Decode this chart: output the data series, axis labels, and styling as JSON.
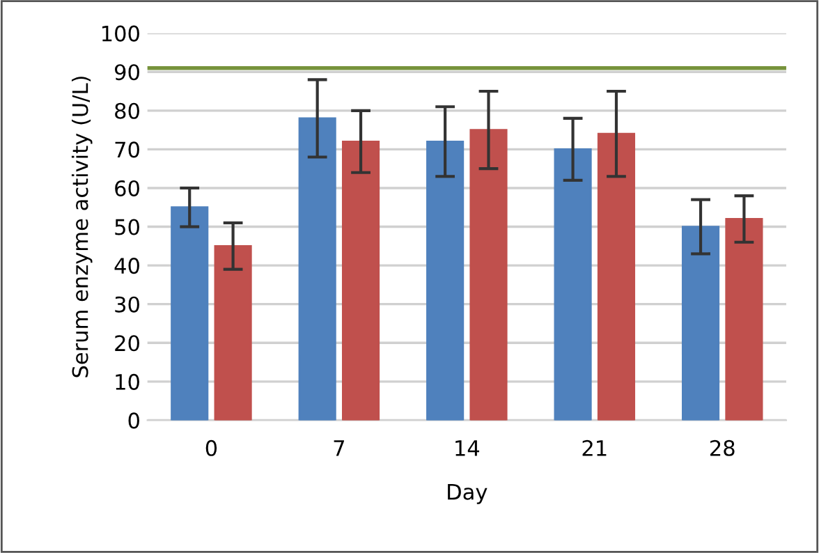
{
  "chart_data": {
    "type": "bar",
    "xlabel": "Day",
    "ylabel": "Serum enzyme activity (U/L)",
    "categories": [
      "0",
      "7",
      "14",
      "21",
      "28"
    ],
    "series": [
      {
        "color": "#4f81bd",
        "values": [
          55,
          78,
          72,
          70,
          50
        ],
        "errors": [
          [
            50,
            60
          ],
          [
            68,
            88
          ],
          [
            63,
            81
          ],
          [
            62,
            78
          ],
          [
            43,
            57
          ]
        ]
      },
      {
        "color": "#c0504d",
        "values": [
          45,
          72,
          75,
          74,
          52
        ],
        "errors": [
          [
            39,
            51
          ],
          [
            64,
            80
          ],
          [
            65,
            85
          ],
          [
            63,
            85
          ],
          [
            46,
            58
          ]
        ]
      }
    ],
    "ylim": [
      0,
      100
    ],
    "yticks": [
      0,
      10,
      20,
      30,
      40,
      50,
      60,
      70,
      80,
      90,
      100
    ],
    "grid": "y",
    "legend": false,
    "ref_lines": [
      {
        "axis": "y",
        "value": 91,
        "color": "#77933c"
      }
    ]
  }
}
